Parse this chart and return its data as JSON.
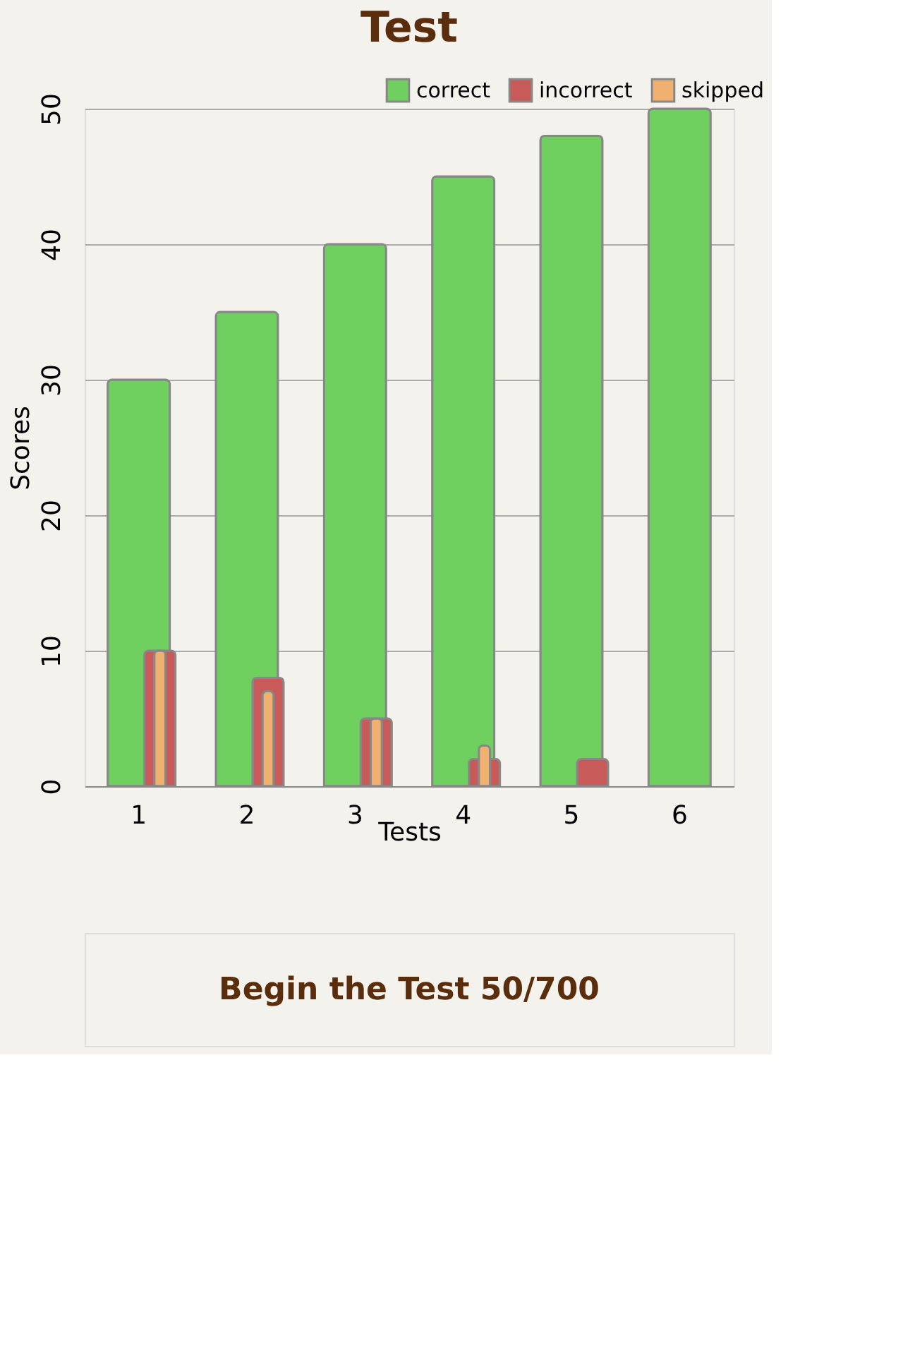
{
  "chart_data": {
    "type": "bar",
    "title": "Test",
    "xlabel": "Tests",
    "ylabel": "Scores",
    "categories": [
      "1",
      "2",
      "3",
      "4",
      "5",
      "6"
    ],
    "series": [
      {
        "name": "correct",
        "color": "#6fcf5f",
        "values": [
          30,
          35,
          40,
          45,
          48,
          50
        ]
      },
      {
        "name": "incorrect",
        "color": "#c85a5a",
        "values": [
          10,
          8,
          5,
          2,
          2,
          null
        ]
      },
      {
        "name": "skipped",
        "color": "#f0b070",
        "values": [
          10,
          7,
          5,
          3,
          null,
          null
        ]
      }
    ],
    "ylim": [
      0,
      50
    ],
    "yticks": [
      0,
      10,
      20,
      30,
      40,
      50
    ],
    "grid": "y",
    "legend": "top right",
    "annotations": [
      "Begin the Test   50/700"
    ]
  }
}
